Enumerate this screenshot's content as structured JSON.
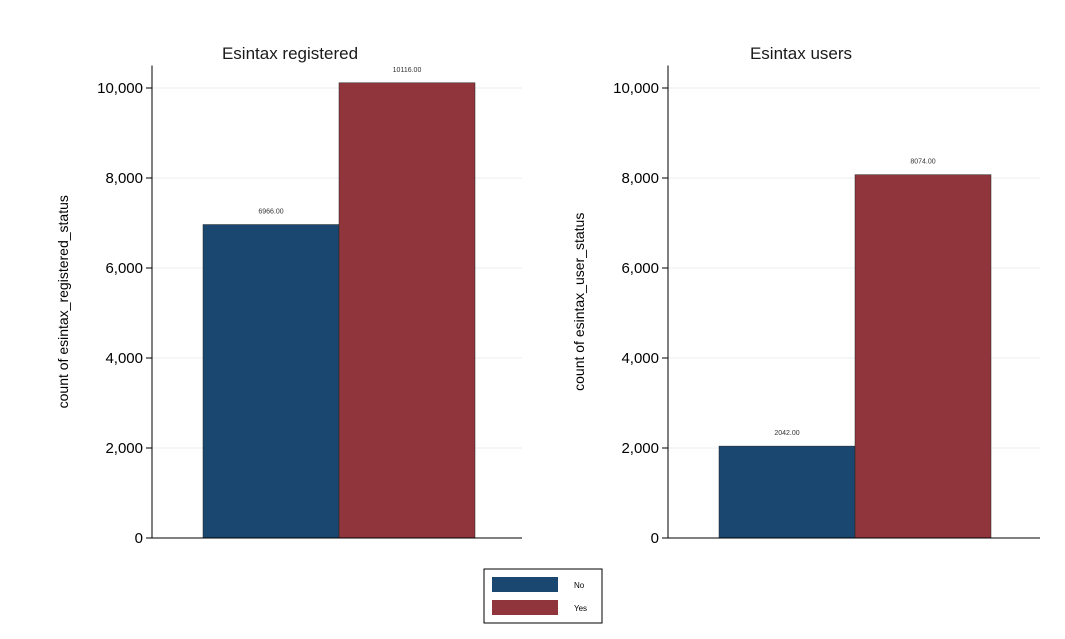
{
  "chart_data": [
    {
      "type": "bar",
      "title": "Esintax registered",
      "ylabel": "count of esintax_registered_status",
      "xlabel": "",
      "ylim": [
        0,
        10500
      ],
      "yticks": [
        0,
        2000,
        4000,
        6000,
        8000,
        10000
      ],
      "ytick_labels": [
        "0",
        "2,000",
        "4,000",
        "6,000",
        "8,000",
        "10,000"
      ],
      "grid": true,
      "series": [
        {
          "name": "No",
          "values": [
            6966
          ],
          "label": "6966.00"
        },
        {
          "name": "Yes",
          "values": [
            10116
          ],
          "label": "10116.00"
        }
      ]
    },
    {
      "type": "bar",
      "title": "Esintax users",
      "ylabel": "count of esintax_user_status",
      "xlabel": "",
      "ylim": [
        0,
        10500
      ],
      "yticks": [
        0,
        2000,
        4000,
        6000,
        8000,
        10000
      ],
      "ytick_labels": [
        "0",
        "2,000",
        "4,000",
        "6,000",
        "8,000",
        "10,000"
      ],
      "grid": true,
      "series": [
        {
          "name": "No",
          "values": [
            2042
          ],
          "label": "2042.00"
        },
        {
          "name": "Yes",
          "values": [
            8074
          ],
          "label": "8074.00"
        }
      ]
    }
  ],
  "legend": {
    "placement": "bottom-center",
    "items": [
      {
        "label": "No",
        "color": "#1a476f"
      },
      {
        "label": "Yes",
        "color": "#90353b"
      }
    ]
  }
}
